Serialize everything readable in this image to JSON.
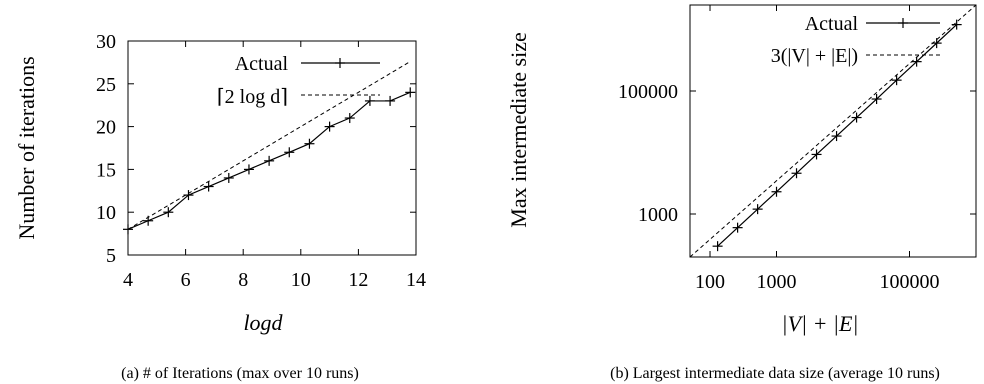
{
  "chart_data": [
    {
      "type": "line",
      "xlabel": "logd",
      "ylabel": "Number of iterations",
      "xlim": [
        4,
        14
      ],
      "ylim": [
        5,
        30
      ],
      "x_ticks": [
        "4",
        "6",
        "8",
        "10",
        "12",
        "14"
      ],
      "y_ticks": [
        "5",
        "10",
        "15",
        "20",
        "25",
        "30"
      ],
      "grid": false,
      "legend_position": "top-right",
      "series": [
        {
          "name": "Actual",
          "style": "solid-with-plus-markers",
          "x": [
            4.0,
            4.7,
            5.4,
            6.1,
            6.8,
            7.5,
            8.2,
            8.9,
            9.6,
            10.3,
            11.0,
            11.7,
            12.4,
            13.1,
            13.8
          ],
          "y": [
            8,
            9,
            10,
            12,
            13,
            14,
            15,
            16,
            17,
            18,
            20,
            21,
            23,
            23,
            24
          ]
        },
        {
          "name": "⌈2 log d⌉",
          "style": "dashed",
          "x": [
            4.0,
            13.8
          ],
          "y": [
            8,
            27.6
          ]
        }
      ],
      "caption": "(a) # of Iterations (max over 10 runs)"
    },
    {
      "type": "line",
      "xlabel": "|V| + |E|",
      "ylabel": "Max intermediate size",
      "xscale": "log",
      "yscale": "log",
      "xlim": [
        50,
        1000000
      ],
      "ylim": [
        200,
        2500000
      ],
      "x_ticks": [
        "100",
        "1000",
        "100000"
      ],
      "y_ticks": [
        "1000",
        "100000"
      ],
      "grid": false,
      "legend_position": "top-left",
      "series": [
        {
          "name": "Actual",
          "style": "solid-with-plus-markers",
          "x": [
            130,
            260,
            520,
            1000,
            2000,
            4000,
            8000,
            16000,
            32000,
            64000,
            128000,
            256000,
            512000
          ],
          "y": [
            300,
            600,
            1200,
            2300,
            4600,
            9300,
            18500,
            37000,
            74000,
            150000,
            300000,
            600000,
            1200000
          ]
        },
        {
          "name": "3(|V| + |E|)",
          "style": "dashed",
          "x": [
            50,
            1000000
          ],
          "y": [
            150,
            3000000
          ]
        }
      ],
      "caption": "(b) Largest intermediate data size (average 10 runs)"
    }
  ]
}
